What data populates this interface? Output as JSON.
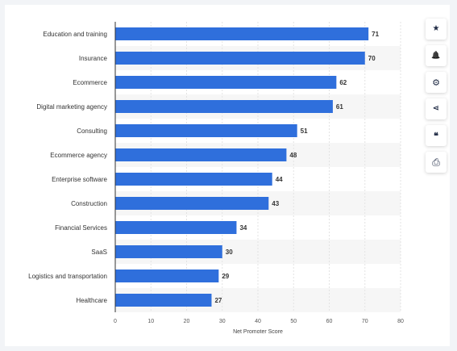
{
  "toolbar": {
    "favorite_icon": "star-icon",
    "notify_icon": "bell-icon",
    "settings_icon": "gear-icon",
    "share_icon": "share-icon",
    "cite_icon": "quote-icon",
    "print_icon": "printer-icon",
    "favorite_glyph": "★",
    "notify_glyph": "🔔",
    "settings_glyph": "⚙",
    "share_glyph": "⋖",
    "cite_glyph": "❝",
    "print_glyph": "⎙"
  },
  "chart_data": {
    "type": "bar",
    "orientation": "horizontal",
    "categories": [
      "Education and training",
      "Insurance",
      "Ecommerce",
      "Digital marketing agency",
      "Consulting",
      "Ecommerce agency",
      "Enterprise software",
      "Construction",
      "Financial Services",
      "SaaS",
      "Logistics and transportation",
      "Healthcare"
    ],
    "values": [
      71,
      70,
      62,
      61,
      51,
      48,
      44,
      43,
      34,
      30,
      29,
      27
    ],
    "xlabel": "Net Promoter Score",
    "ylabel": "",
    "xlim": [
      0,
      80
    ],
    "xticks": [
      0,
      10,
      20,
      30,
      40,
      50,
      60,
      70,
      80
    ],
    "bar_color": "#2f6fdc",
    "grid": true,
    "data_labels": true
  }
}
